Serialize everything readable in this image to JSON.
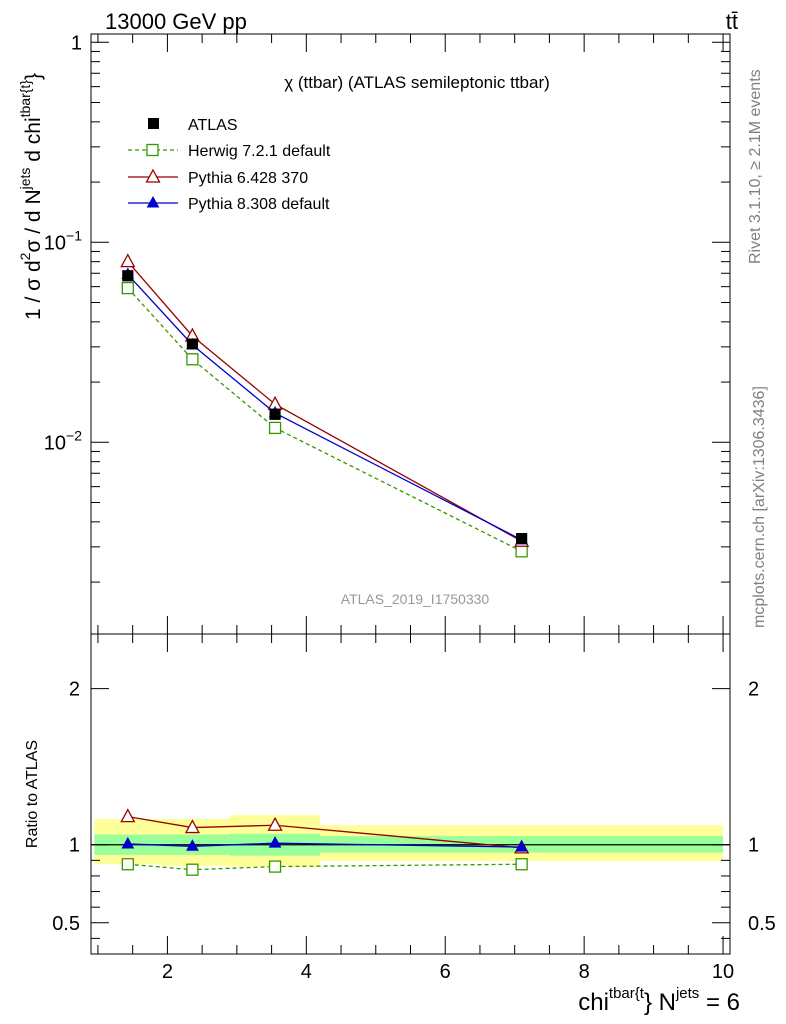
{
  "header": {
    "energy": "13000 GeV pp",
    "process": "tt̄"
  },
  "side_labels": {
    "rivet": "Rivet 3.1.10, ≥ 2.1M events",
    "mcplots": "mcplots.cern.ch [arXiv:1306.3436]"
  },
  "chart_data": [
    {
      "type": "line",
      "panel": "main",
      "title": "χ (ttbar) (ATLAS semileptonic ttbar)",
      "ylabel": "1 / σ d²σ / d N^jets d chi^tbar{t}",
      "ylabel_parts": {
        "p1": "1 / σ d",
        "p1sup": "2",
        "p2": "σ / d N",
        "p2sup": "jets",
        "p3": " d chi",
        "p3sup": "tbar{t}",
        "p4": "}"
      },
      "yscale": "log",
      "ylim": [
        0.0011,
        1.1
      ],
      "xlim": [
        0.9,
        10.1
      ],
      "yticks": [
        {
          "value": 1,
          "base": "1",
          "exp": ""
        },
        {
          "value": 0.1,
          "base": "10",
          "exp": "−1"
        },
        {
          "value": 0.01,
          "base": "10",
          "exp": "−2"
        }
      ],
      "watermark": "ATLAS_2019_I1750330",
      "legend_position": "top-left",
      "data": {
        "name": "ATLAS",
        "x": [
          1.43,
          2.36,
          3.55,
          7.1
        ],
        "y": [
          0.068,
          0.031,
          0.0138,
          0.0033
        ]
      },
      "series": [
        {
          "name": "Herwig 7.2.1 default",
          "color": "#339900",
          "marker": "open-square",
          "dash": "dashed",
          "x": [
            1.43,
            2.36,
            3.55,
            7.1
          ],
          "y": [
            0.059,
            0.026,
            0.0118,
            0.00285
          ]
        },
        {
          "name": "Pythia 6.428 370",
          "color": "#990000",
          "marker": "open-triangle",
          "dash": "solid",
          "x": [
            1.43,
            2.36,
            3.55,
            7.1
          ],
          "y": [
            0.08,
            0.034,
            0.0155,
            0.0032
          ]
        },
        {
          "name": "Pythia 8.308 default",
          "color": "#0000cc",
          "marker": "filled-triangle",
          "dash": "solid",
          "x": [
            1.43,
            2.36,
            3.55,
            7.1
          ],
          "y": [
            0.069,
            0.0307,
            0.014,
            0.00325
          ]
        }
      ]
    },
    {
      "type": "line",
      "panel": "ratio",
      "ylabel": "Ratio to ATLAS",
      "ylim": [
        0.3,
        2.35
      ],
      "xlim": [
        0.9,
        10.1
      ],
      "yticks": [
        0.5,
        1,
        2
      ],
      "ytick_labels": [
        "0.5",
        "1",
        "2"
      ],
      "xticks": [
        2,
        4,
        6,
        8,
        10
      ],
      "xtick_labels": [
        "2",
        "4",
        "6",
        "8",
        "10"
      ],
      "xlabel_parts": {
        "p1": "chi",
        "p1sup": "tbar{t",
        "p2": "} N",
        "p2sup": "jets",
        "p3": " = 6"
      },
      "bins": [
        {
          "lo": 0.95,
          "hi": 1.9,
          "stat": [
            0.935,
            1.065
          ],
          "total": [
            0.875,
            1.165
          ]
        },
        {
          "lo": 1.9,
          "hi": 2.9,
          "stat": [
            0.935,
            1.065
          ],
          "total": [
            0.865,
            1.165
          ]
        },
        {
          "lo": 2.9,
          "hi": 4.2,
          "stat": [
            0.93,
            1.07
          ],
          "total": [
            0.86,
            1.19
          ]
        },
        {
          "lo": 4.2,
          "hi": 10.0,
          "stat": [
            0.95,
            1.055
          ],
          "total": [
            0.895,
            1.125
          ]
        }
      ],
      "series": [
        {
          "name": "Herwig 7.2.1 default",
          "color": "#339900",
          "marker": "open-square",
          "dash": "dashed",
          "x": [
            1.43,
            2.36,
            3.55,
            7.1
          ],
          "y": [
            0.875,
            0.84,
            0.86,
            0.875
          ]
        },
        {
          "name": "Pythia 6.428 370",
          "color": "#990000",
          "marker": "open-triangle",
          "dash": "solid",
          "x": [
            1.43,
            2.36,
            3.55,
            7.1
          ],
          "y": [
            1.18,
            1.11,
            1.125,
            0.98
          ]
        },
        {
          "name": "Pythia 8.308 default",
          "color": "#0000cc",
          "marker": "filled-triangle",
          "dash": "solid",
          "x": [
            1.43,
            2.36,
            3.55,
            7.1
          ],
          "y": [
            1.005,
            0.99,
            1.01,
            0.985
          ]
        }
      ],
      "colors": {
        "stat_band": "#99ff99",
        "total_band": "#ffff99"
      }
    }
  ]
}
